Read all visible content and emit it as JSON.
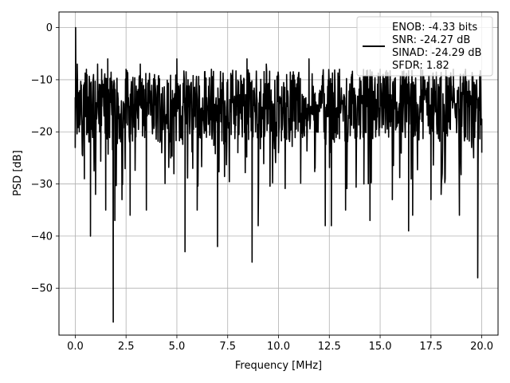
{
  "chart_data": {
    "type": "line",
    "title": "",
    "xlabel": "Frequency [MHz]",
    "ylabel": "PSD [dB]",
    "xlim": [
      -0.8,
      20.8
    ],
    "ylim": [
      -59,
      3
    ],
    "xticks": [
      0.0,
      2.5,
      5.0,
      7.5,
      10.0,
      12.5,
      15.0,
      17.5,
      20.0
    ],
    "xtick_labels": [
      "0.0",
      "2.5",
      "5.0",
      "7.5",
      "10.0",
      "12.5",
      "15.0",
      "17.5",
      "20.0"
    ],
    "yticks": [
      0,
      -10,
      -20,
      -30,
      -40,
      -50
    ],
    "ytick_labels": [
      "0",
      "−10",
      "−20",
      "−30",
      "−40",
      "−50"
    ],
    "grid": true,
    "legend_position": "top-right",
    "legend_lines": [
      "ENOB: -4.33 bits",
      "SNR: -24.27 dB",
      "SINAD: -24.29 dB",
      "SFDR: 1.82"
    ],
    "series": [
      {
        "color": "#000000",
        "noise_floor_db": [
          -22,
          -8
        ],
        "x": [
          0.0,
          0.02,
          0.05,
          0.1,
          0.2,
          0.3,
          0.45,
          0.55,
          0.75,
          0.9,
          1.0,
          1.1,
          1.2,
          1.3,
          1.5,
          1.6,
          1.8,
          1.87,
          1.95,
          2.05,
          2.3,
          2.5,
          2.7,
          3.2,
          3.3,
          3.5,
          3.9,
          4.7,
          5.0,
          5.4,
          5.55,
          6.0,
          6.7,
          7.0,
          7.5,
          8.0,
          8.45,
          8.7,
          8.9,
          9.0,
          9.4,
          10.0,
          10.4,
          11.5,
          11.8,
          12.3,
          12.45,
          12.6,
          13.0,
          13.3,
          13.6,
          14.2,
          14.5,
          15.0,
          15.6,
          16.2,
          16.4,
          16.6,
          17.0,
          17.5,
          18.0,
          18.6,
          18.9,
          19.2,
          19.5,
          19.8,
          19.9,
          20.0
        ],
        "y": [
          -23,
          0,
          -12,
          -7,
          -20,
          -11,
          -29,
          -8,
          -40,
          -9,
          -32,
          -7,
          -20,
          -8,
          -35,
          -6,
          -12,
          -56.5,
          -37,
          -10,
          -33,
          -8,
          -36,
          -7,
          -12,
          -35,
          -9,
          -25,
          -6,
          -43,
          -10,
          -35,
          -8,
          -42,
          -10,
          -24,
          -6,
          -45,
          -11,
          -38,
          -7,
          -24,
          -9,
          -6,
          -27,
          -38,
          -10,
          -38,
          -8,
          -35,
          -9,
          -30,
          -37,
          -8,
          -33,
          -10,
          -39,
          -36,
          -8,
          -33,
          -32,
          -8,
          -36,
          -8,
          -23,
          -48,
          -9,
          -24
        ]
      }
    ]
  }
}
